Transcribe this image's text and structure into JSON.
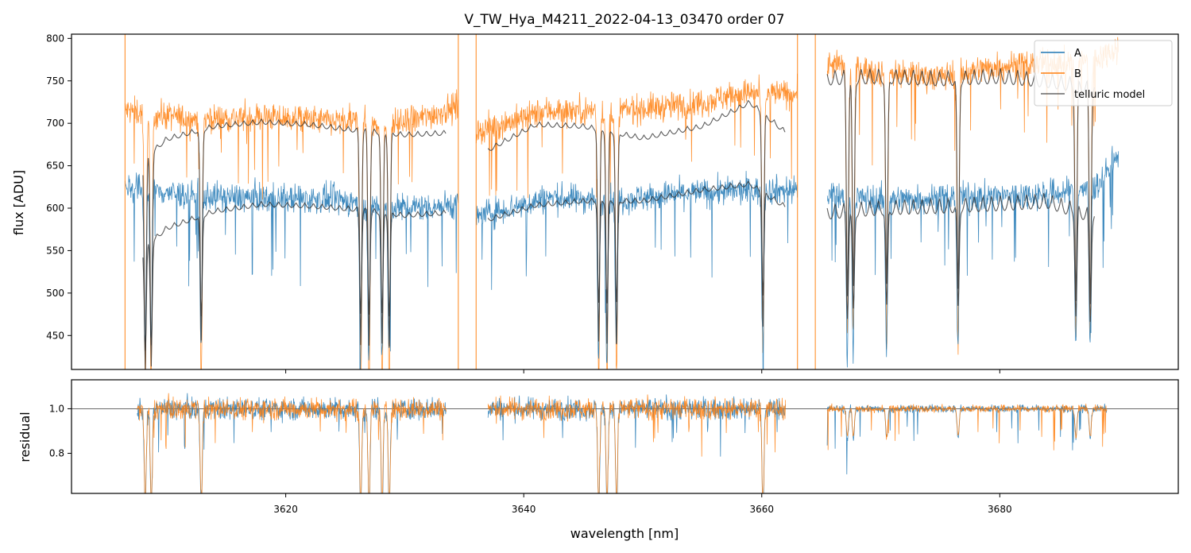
{
  "chart_data": [
    {
      "type": "line",
      "panel": "top",
      "title": "V_TW_Hya_M4211_2022-04-13_03470  order 07",
      "xlabel": "",
      "ylabel": "flux [ADU]",
      "xlim": [
        3602,
        3695
      ],
      "ylim": [
        410,
        805
      ],
      "yticks": [
        450,
        500,
        550,
        600,
        650,
        700,
        750,
        800
      ],
      "xticks": [
        3620,
        3640,
        3660,
        3680
      ],
      "legend_position": "top-right",
      "gaps": [
        [
          3634.5,
          3636.0
        ],
        [
          3663.0,
          3665.5
        ]
      ],
      "series": [
        {
          "name": "A",
          "color": "#1f77b4",
          "x": [
            3606.5,
            3612,
            3618,
            3624,
            3630,
            3634.5,
            3636,
            3642,
            3648,
            3654,
            3658,
            3663,
            3665.5,
            3670,
            3675,
            3680,
            3685,
            3688,
            3690
          ],
          "y": [
            625,
            615,
            612,
            610,
            600,
            605,
            590,
            612,
            610,
            618,
            620,
            622,
            615,
            610,
            612,
            614,
            618,
            625,
            660
          ]
        },
        {
          "name": "B",
          "color": "#ff7f0e",
          "x": [
            3606.5,
            3612,
            3618,
            3624,
            3630,
            3634.5,
            3636,
            3642,
            3648,
            3654,
            3658,
            3663,
            3665.5,
            3670,
            3675,
            3680,
            3685,
            3688,
            3690
          ],
          "y": [
            715,
            705,
            708,
            702,
            700,
            720,
            690,
            715,
            715,
            722,
            735,
            735,
            770,
            760,
            755,
            768,
            770,
            775,
            790
          ]
        },
        {
          "name": "telluric model (B)",
          "legend": false,
          "color": "#333333",
          "x": [
            3608,
            3610,
            3614,
            3618,
            3622,
            3626,
            3630,
            3633.5,
            3637,
            3641,
            3645,
            3650,
            3655,
            3659,
            3662,
            3665.5,
            3670,
            3675,
            3680,
            3684,
            3688
          ],
          "y": [
            660,
            685,
            700,
            705,
            702,
            695,
            690,
            692,
            672,
            702,
            700,
            686,
            700,
            728,
            693,
            763,
            765,
            762,
            765,
            760,
            752
          ]
        },
        {
          "name": "telluric model (A)",
          "legend": false,
          "color": "#333333",
          "x": [
            3608,
            3610,
            3614,
            3618,
            3622,
            3626,
            3630,
            3633.5,
            3637,
            3641,
            3645,
            3650,
            3655,
            3659,
            3662,
            3665.5,
            3670,
            3675,
            3680,
            3684,
            3688
          ],
          "y": [
            555,
            580,
            600,
            608,
            606,
            602,
            595,
            598,
            590,
            607,
            612,
            612,
            625,
            632,
            605,
            605,
            610,
            612,
            615,
            618,
            600
          ]
        }
      ],
      "legend": [
        {
          "label": "A",
          "color": "#1f77b4"
        },
        {
          "label": "B",
          "color": "#ff7f0e"
        },
        {
          "label": "telluric model",
          "color": "#333333"
        }
      ],
      "telluric_lines": [
        3608.2,
        3608.7,
        3612.9,
        3626.3,
        3627.0,
        3628.1,
        3628.7,
        3646.3,
        3647.0,
        3647.8,
        3660.1,
        3667.2,
        3667.7,
        3670.5,
        3676.5,
        3686.4,
        3687.6
      ]
    },
    {
      "type": "line",
      "panel": "bottom",
      "title": "",
      "xlabel": "wavelength [nm]",
      "ylabel": "residual",
      "xlim": [
        3602,
        3695
      ],
      "ylim": [
        0.62,
        1.13
      ],
      "yticks": [
        0.8,
        1.0
      ],
      "xticks": [
        3620,
        3640,
        3660,
        3680
      ],
      "reference_line": 1.0,
      "segments": [
        [
          3607.5,
          3633.5
        ],
        [
          3637,
          3662
        ],
        [
          3665.5,
          3689
        ]
      ],
      "series": [
        {
          "name": "A",
          "color": "#1f77b4"
        },
        {
          "name": "B",
          "color": "#ff7f0e"
        }
      ]
    }
  ]
}
